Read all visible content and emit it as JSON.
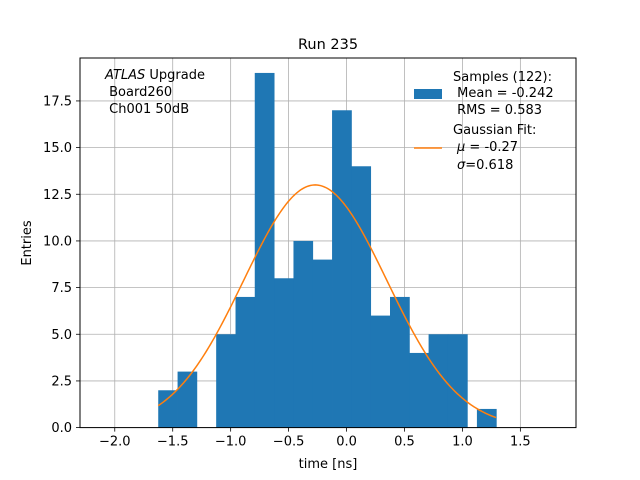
{
  "chart_data": {
    "type": "bar",
    "title": "Run 235",
    "xlabel": "time [ns]",
    "ylabel": "Entries",
    "xlim": [
      -2.3,
      1.98
    ],
    "ylim": [
      0,
      19.8
    ],
    "xticks": [
      -2.0,
      -1.5,
      -1.0,
      -0.5,
      0.0,
      0.5,
      1.0,
      1.5
    ],
    "xtick_labels": [
      "−2.0",
      "−1.5",
      "−1.0",
      "−0.5",
      "0.0",
      "0.5",
      "1.0",
      "1.5"
    ],
    "yticks": [
      0.0,
      2.5,
      5.0,
      7.5,
      10.0,
      12.5,
      15.0,
      17.5
    ],
    "ytick_labels": [
      "0.0",
      "2.5",
      "5.0",
      "7.5",
      "10.0",
      "12.5",
      "15.0",
      "17.5"
    ],
    "grid": true,
    "histogram": {
      "name": "Samples",
      "color": "#1f77b4",
      "bins": [
        {
          "left": -1.625,
          "right": -1.458,
          "value": 2
        },
        {
          "left": -1.458,
          "right": -1.292,
          "value": 3
        },
        {
          "left": -1.292,
          "right": -1.125,
          "value": 0
        },
        {
          "left": -1.125,
          "right": -0.958,
          "value": 5
        },
        {
          "left": -0.958,
          "right": -0.792,
          "value": 7
        },
        {
          "left": -0.792,
          "right": -0.625,
          "value": 19
        },
        {
          "left": -0.625,
          "right": -0.458,
          "value": 8
        },
        {
          "left": -0.458,
          "right": -0.292,
          "value": 10
        },
        {
          "left": -0.292,
          "right": -0.125,
          "value": 9
        },
        {
          "left": -0.125,
          "right": 0.042,
          "value": 17
        },
        {
          "left": 0.042,
          "right": 0.208,
          "value": 14
        },
        {
          "left": 0.208,
          "right": 0.375,
          "value": 6
        },
        {
          "left": 0.375,
          "right": 0.542,
          "value": 7
        },
        {
          "left": 0.542,
          "right": 0.708,
          "value": 4
        },
        {
          "left": 0.708,
          "right": 0.875,
          "value": 5
        },
        {
          "left": 0.875,
          "right": 1.042,
          "value": 5
        },
        {
          "left": 1.042,
          "right": 1.125,
          "value": 0
        },
        {
          "left": 1.125,
          "right": 1.292,
          "value": 1
        }
      ]
    },
    "fit": {
      "name": "Gaussian Fit",
      "color": "#ff7f0e",
      "amplitude": 13.0,
      "mu": -0.27,
      "sigma": 0.618,
      "x_range": [
        -1.625,
        1.29
      ]
    },
    "annotation": {
      "line1_italic": "ATLAS",
      "line1_rest": " Upgrade",
      "line2": " Board260",
      "line3": " Ch001 50dB"
    },
    "legend": {
      "placement": "top-right",
      "hist_lines": [
        "Samples (122):",
        " Mean = -0.242",
        " RMS = 0.583"
      ],
      "fit_lines": [
        "Gaussian Fit:"
      ],
      "fit_mu_symbol": "μ",
      "fit_mu_value": " = -0.27",
      "fit_sigma_symbol": "σ",
      "fit_sigma_value": "=0.618"
    }
  }
}
